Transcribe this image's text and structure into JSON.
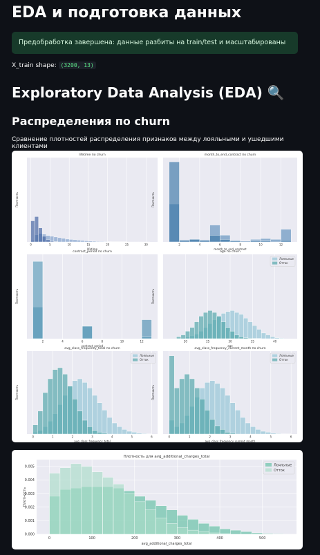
{
  "header": {
    "title": "EDA и подготовка данных"
  },
  "success": "Предобработка завершена: данные разбиты на train/test и масштабированы",
  "shape_label": "X_train shape:",
  "shape_value": "(3200, 13)",
  "eda_title": "Exploratory Data Analysis (EDA) 🔍",
  "dist_title": "Распределения по churn",
  "caption": "Сравнение плотностей распределения признаков между лояльными и ушедшими клиентами",
  "chart_data": [
    {
      "type": "histogram",
      "title": "lifetime по churn",
      "xlabel": "lifetime",
      "ylabel": "Плотность",
      "bins": [
        0,
        1,
        2,
        3,
        4,
        5,
        6,
        7,
        8,
        9,
        10,
        11,
        12,
        13,
        14,
        15,
        16,
        17,
        18,
        19,
        20,
        21,
        22,
        23,
        24,
        25,
        26,
        27,
        28,
        29,
        30,
        31
      ],
      "xlim": [
        -1,
        33
      ],
      "ylim": [
        0,
        1.2
      ],
      "xticks": [
        0,
        5,
        10,
        15,
        20,
        25,
        30
      ],
      "series": [
        {
          "color": "#7b9cc9",
          "values": [
            0.02,
            0.1,
            0.12,
            0.11,
            0.09,
            0.08,
            0.07,
            0.06,
            0.05,
            0.04,
            0.035,
            0.03,
            0.025,
            0.02,
            0.015,
            0.012,
            0.01,
            0.008,
            0.006,
            0.005,
            0.004,
            0.003,
            0.003,
            0.002,
            0.002,
            0.001,
            0.001,
            0.001,
            0.001,
            0.001,
            0.001
          ]
        },
        {
          "color": "#3e5f9e",
          "values": [
            0.3,
            0.36,
            0.2,
            0.08,
            0.03,
            0.01,
            0.005,
            0,
            0,
            0,
            0,
            0,
            0,
            0,
            0,
            0,
            0,
            0,
            0,
            0,
            0,
            0,
            0,
            0,
            0,
            0,
            0,
            0,
            0,
            0,
            0
          ]
        }
      ]
    },
    {
      "type": "histogram",
      "title": "month_to_end_contract по churn",
      "xlabel": "month_to_end_contract",
      "ylabel": "Плотность",
      "bins": [
        1,
        2,
        3,
        4,
        5,
        6,
        7,
        8,
        9,
        10,
        11,
        12,
        13
      ],
      "xlim": [
        0.4,
        13.6
      ],
      "ylim": [
        0,
        1.0
      ],
      "xticks": [
        2,
        4,
        6,
        8,
        10,
        12
      ],
      "series": [
        {
          "color": "#5e8fbb",
          "values": [
            0.45,
            0.02,
            0.03,
            0.02,
            0.2,
            0.08,
            0.02,
            0.01,
            0.03,
            0.04,
            0.03,
            0.15
          ]
        },
        {
          "color": "#3a77a6",
          "values": [
            0.95,
            0.02,
            0.03,
            0.02,
            0.08,
            0.03,
            0.01,
            0,
            0.01,
            0.01,
            0,
            0.02
          ]
        }
      ]
    },
    {
      "type": "histogram",
      "title": "contract_period по churn",
      "xlabel": "contract_period",
      "ylabel": "Плотность",
      "bins": [
        1,
        2,
        3,
        4,
        5,
        6,
        7,
        8,
        9,
        10,
        11,
        12,
        13
      ],
      "xlim": [
        0.4,
        13.6
      ],
      "ylim": [
        0,
        1.2
      ],
      "xticks": [
        2,
        4,
        6,
        8,
        10,
        12
      ],
      "series": [
        {
          "color": "#4f8fb0",
          "values": [
            0.45,
            0,
            0,
            0,
            0,
            0.17,
            0,
            0,
            0,
            0,
            0,
            0.27
          ]
        },
        {
          "color": "#5b9bb8",
          "values": [
            1.1,
            0,
            0,
            0,
            0,
            0.18,
            0,
            0,
            0,
            0,
            0,
            0.03
          ]
        }
      ]
    },
    {
      "type": "histogram",
      "title": "age по churn",
      "xlabel": "age",
      "ylabel": "Плотность",
      "legend": "upper right",
      "bins": [
        18,
        19,
        20,
        21,
        22,
        23,
        24,
        25,
        26,
        27,
        28,
        29,
        30,
        31,
        32,
        33,
        34,
        35,
        36,
        37,
        38,
        39,
        40,
        41,
        42
      ],
      "xlim": [
        15,
        45
      ],
      "ylim": [
        0,
        0.45
      ],
      "xticks": [
        20,
        25,
        30,
        35,
        40
      ],
      "series": [
        {
          "name": "Лояльные",
          "color": "#8fc3d4",
          "values": [
            0.002,
            0.004,
            0.008,
            0.015,
            0.025,
            0.04,
            0.06,
            0.08,
            0.1,
            0.12,
            0.135,
            0.145,
            0.15,
            0.14,
            0.13,
            0.11,
            0.09,
            0.07,
            0.05,
            0.03,
            0.02,
            0.01,
            0.005,
            0.003
          ]
        },
        {
          "name": "Отток",
          "color": "#4ba3a6",
          "values": [
            0.01,
            0.02,
            0.04,
            0.06,
            0.09,
            0.12,
            0.14,
            0.15,
            0.14,
            0.12,
            0.09,
            0.06,
            0.04,
            0.02,
            0.01,
            0.005,
            0.003,
            0.002,
            0.001,
            0,
            0,
            0,
            0,
            0
          ]
        }
      ]
    },
    {
      "type": "histogram",
      "title": "avg_class_frequency_total по churn",
      "xlabel": "avg_class_frequency_total",
      "ylabel": "Плотность",
      "legend": "upper right",
      "bins": [
        0,
        0.25,
        0.5,
        0.75,
        1,
        1.25,
        1.5,
        1.75,
        2,
        2.25,
        2.5,
        2.75,
        3,
        3.25,
        3.5,
        3.75,
        4,
        4.25,
        4.5,
        4.75,
        5,
        5.25,
        5.5,
        5.75,
        6
      ],
      "xlim": [
        -0.3,
        6.3
      ],
      "ylim": [
        0,
        0.9
      ],
      "xticks": [
        0,
        1,
        2,
        3,
        4,
        5,
        6
      ],
      "series": [
        {
          "name": "Лояльные",
          "color": "#8fc3d4",
          "values": [
            0.02,
            0.04,
            0.08,
            0.14,
            0.22,
            0.32,
            0.42,
            0.52,
            0.58,
            0.6,
            0.56,
            0.5,
            0.42,
            0.34,
            0.26,
            0.18,
            0.12,
            0.08,
            0.05,
            0.03,
            0.02,
            0.01,
            0.005,
            0.003
          ]
        },
        {
          "name": "Отток",
          "color": "#4ba3a6",
          "values": [
            0.1,
            0.25,
            0.45,
            0.6,
            0.7,
            0.72,
            0.65,
            0.52,
            0.38,
            0.25,
            0.15,
            0.08,
            0.04,
            0.02,
            0.01,
            0,
            0,
            0,
            0,
            0,
            0,
            0,
            0,
            0
          ]
        }
      ]
    },
    {
      "type": "histogram",
      "title": "avg_class_frequency_current_month по churn",
      "xlabel": "avg_class_frequency_current_month",
      "ylabel": "Плотность",
      "legend": "upper right",
      "bins": [
        0,
        0.25,
        0.5,
        0.75,
        1,
        1.25,
        1.5,
        1.75,
        2,
        2.25,
        2.5,
        2.75,
        3,
        3.25,
        3.5,
        3.75,
        4,
        4.25,
        4.5,
        4.75,
        5,
        5.25,
        5.5,
        5.75,
        6
      ],
      "xlim": [
        -0.3,
        6.3
      ],
      "ylim": [
        0,
        0.9
      ],
      "xticks": [
        0,
        1,
        2,
        3,
        4,
        5,
        6
      ],
      "series": [
        {
          "name": "Лояльные",
          "color": "#8fc3d4",
          "values": [
            0.15,
            0.08,
            0.12,
            0.2,
            0.3,
            0.4,
            0.5,
            0.56,
            0.58,
            0.55,
            0.5,
            0.42,
            0.34,
            0.26,
            0.18,
            0.12,
            0.08,
            0.05,
            0.03,
            0.02,
            0.01,
            0.005,
            0.003,
            0.002
          ]
        },
        {
          "name": "Отток",
          "color": "#4ba3a6",
          "values": [
            0.85,
            0.5,
            0.6,
            0.65,
            0.6,
            0.5,
            0.38,
            0.26,
            0.16,
            0.09,
            0.05,
            0.02,
            0.01,
            0,
            0,
            0,
            0,
            0,
            0,
            0,
            0,
            0,
            0,
            0
          ]
        }
      ]
    },
    {
      "type": "histogram",
      "title": "Плотность для avg_additional_charges_total",
      "xlabel": "avg_additional_charges_total",
      "ylabel": "Плотность",
      "legend": "upper right",
      "bins": [
        0,
        25,
        50,
        75,
        100,
        125,
        150,
        175,
        200,
        225,
        250,
        275,
        300,
        325,
        350,
        375,
        400,
        425,
        450,
        475,
        500,
        525,
        550
      ],
      "xlim": [
        -30,
        580
      ],
      "ylim": [
        0,
        0.0055
      ],
      "xticks": [
        0,
        100,
        200,
        300,
        400,
        500
      ],
      "yticks": [
        {
          "value": 0,
          "label": "0.000"
        },
        {
          "value": 0.001,
          "label": "0.001"
        },
        {
          "value": 0.002,
          "label": "0.002"
        },
        {
          "value": 0.003,
          "label": "0.003"
        },
        {
          "value": 0.004,
          "label": "0.004"
        },
        {
          "value": 0.005,
          "label": "0.005"
        }
      ],
      "series": [
        {
          "name": "Лояльные",
          "color": "#5fbfa2",
          "values": [
            0.0028,
            0.0033,
            0.0034,
            0.0035,
            0.0035,
            0.0035,
            0.0034,
            0.0032,
            0.0028,
            0.0025,
            0.0021,
            0.0018,
            0.0014,
            0.0011,
            0.0008,
            0.0006,
            0.0004,
            0.0003,
            0.0002,
            0.0001,
            5e-05,
            3e-05
          ]
        },
        {
          "name": "Отток",
          "color": "#a9dcc8",
          "values": [
            0.0045,
            0.0049,
            0.0052,
            0.005,
            0.0046,
            0.0042,
            0.0037,
            0.003,
            0.0024,
            0.0018,
            0.0012,
            0.0008,
            0.0005,
            0.0003,
            0.0002,
            0.0001,
            5e-05,
            0,
            0,
            0,
            0,
            0
          ]
        }
      ]
    }
  ]
}
